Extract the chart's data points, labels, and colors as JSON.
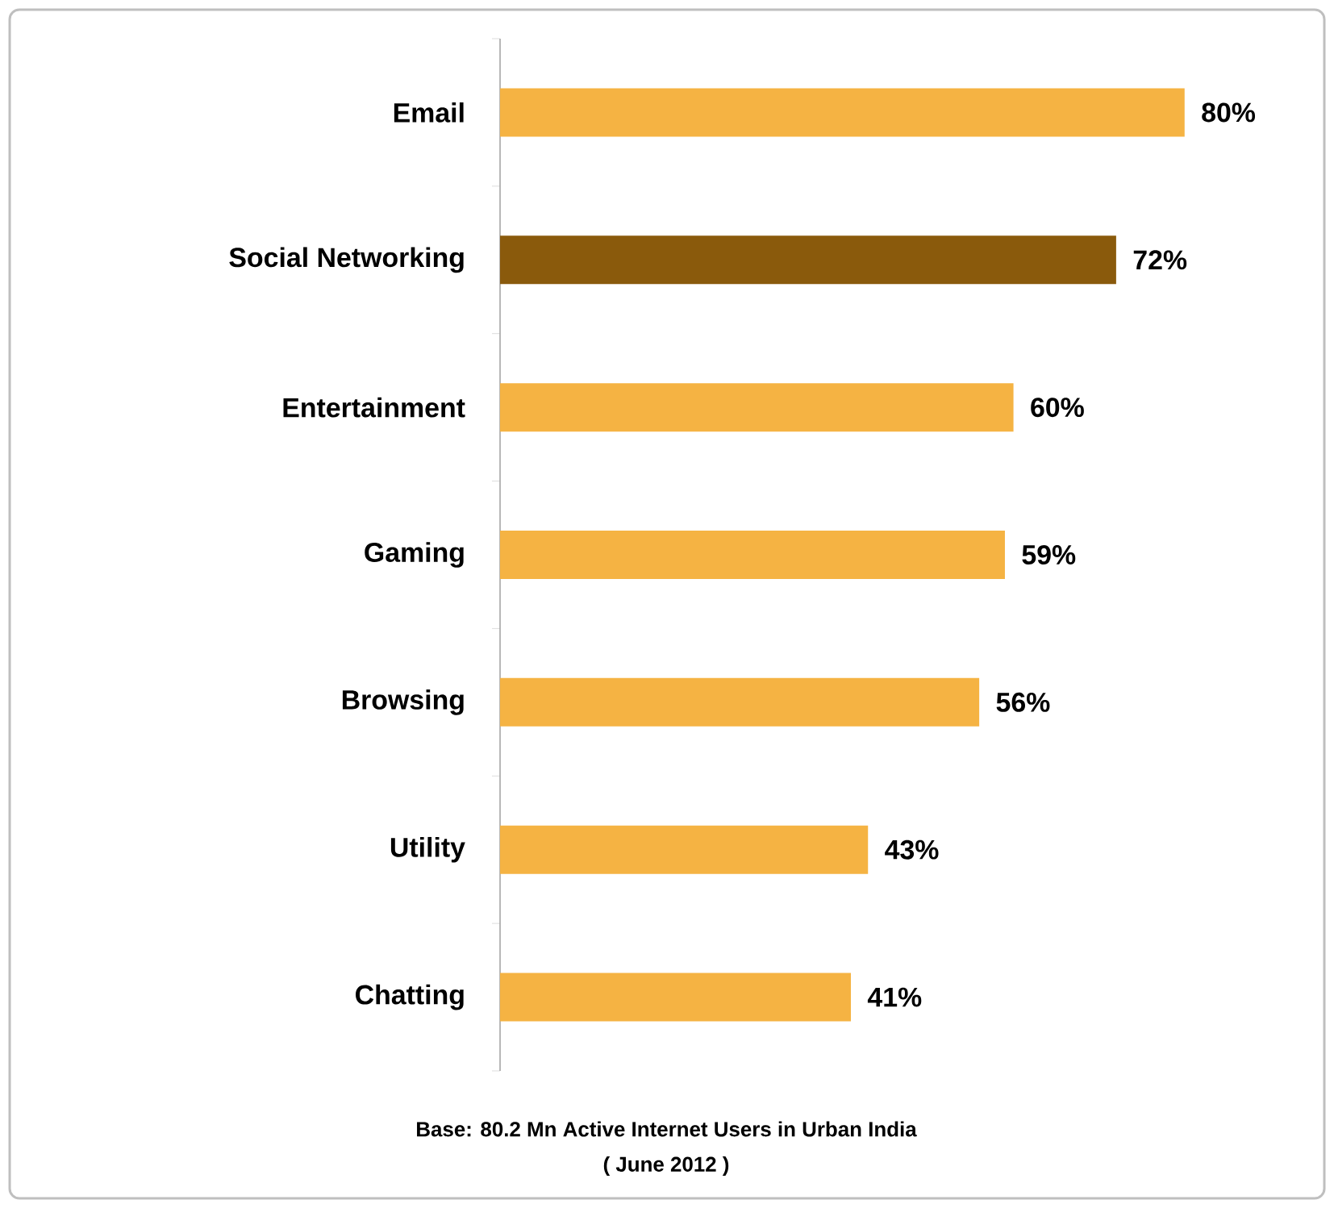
{
  "chart_data": {
    "type": "bar",
    "orientation": "horizontal",
    "categories": [
      "Email",
      "Social Networking",
      "Entertainment",
      "Gaming",
      "Browsing",
      "Utility",
      "Chatting"
    ],
    "values": [
      80,
      72,
      60,
      59,
      56,
      43,
      41
    ],
    "value_labels": [
      "80%",
      "72%",
      "60%",
      "59%",
      "56%",
      "43%",
      "41%"
    ],
    "colors": [
      "#f5b343",
      "#8a5a0c",
      "#f5b343",
      "#f5b343",
      "#f5b343",
      "#f5b343",
      "#f5b343"
    ],
    "annotations": [
      "Base: 80.2 Mn Active Internet Users in Urban India",
      "( June 2012 )"
    ]
  }
}
